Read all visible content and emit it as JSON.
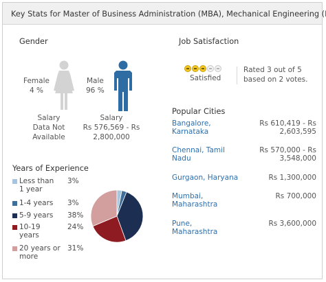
{
  "header": {
    "title": "Key Stats for Master of Business Administration (MBA), Mechanical Engineering (ME)"
  },
  "gender": {
    "heading": "Gender",
    "female": {
      "label": "Female",
      "percent": "4 %",
      "salary_label": "Salary",
      "salary_l1": "Data Not",
      "salary_l2": "Available",
      "color": "#d3d3d3"
    },
    "male": {
      "label": "Male",
      "percent": "96 %",
      "salary_label": "Salary",
      "salary_l1": "Rs 576,569 - Rs",
      "salary_l2": "2,800,000",
      "color": "#2e6da4"
    }
  },
  "job_satisfaction": {
    "heading": "Job Satisfaction",
    "rating": 3,
    "max": 5,
    "label": "Satisfied",
    "rated_l1": "Rated 3 out of 5",
    "rated_l2": "based on 2 votes."
  },
  "cities": {
    "heading": "Popular Cities",
    "items": [
      {
        "name_l1": "Bangalore,",
        "name_l2": "Karnataka",
        "salary_l1": "Rs 610,419 - Rs",
        "salary_l2": "2,603,595"
      },
      {
        "name_l1": "Chennai, Tamil",
        "name_l2": "Nadu",
        "salary_l1": "Rs 570,000 - Rs",
        "salary_l2": "3,548,000"
      },
      {
        "name_l1": "Gurgaon, Haryana",
        "name_l2": "",
        "salary_l1": "Rs 1,300,000",
        "salary_l2": ""
      },
      {
        "name_l1": "Mumbai,",
        "name_l2": "Maharashtra",
        "salary_l1": "Rs 700,000",
        "salary_l2": ""
      },
      {
        "name_l1": "Pune,",
        "name_l2": "Maharashtra",
        "salary_l1": "Rs 3,600,000",
        "salary_l2": ""
      }
    ]
  },
  "experience": {
    "heading": "Years of Experience",
    "legend": [
      {
        "l1": "Less than",
        "l2": "1 year",
        "pct": "3%"
      },
      {
        "l1": "1-4 years",
        "l2": "",
        "pct": "3%"
      },
      {
        "l1": "5-9 years",
        "l2": "",
        "pct": "38%"
      },
      {
        "l1": "10-19",
        "l2": "years",
        "pct": "24%"
      },
      {
        "l1": "20 years or",
        "l2": "more",
        "pct": "31%"
      }
    ]
  },
  "chart_data": {
    "type": "pie",
    "categories": [
      "Less than 1 year",
      "1-4 years",
      "5-9 years",
      "10-19 years",
      "20 years or more"
    ],
    "values": [
      3,
      3,
      38,
      24,
      31
    ],
    "colors": [
      "#a9c4dd",
      "#3f6f98",
      "#1c2f52",
      "#8e1b22",
      "#d39f9e"
    ]
  }
}
